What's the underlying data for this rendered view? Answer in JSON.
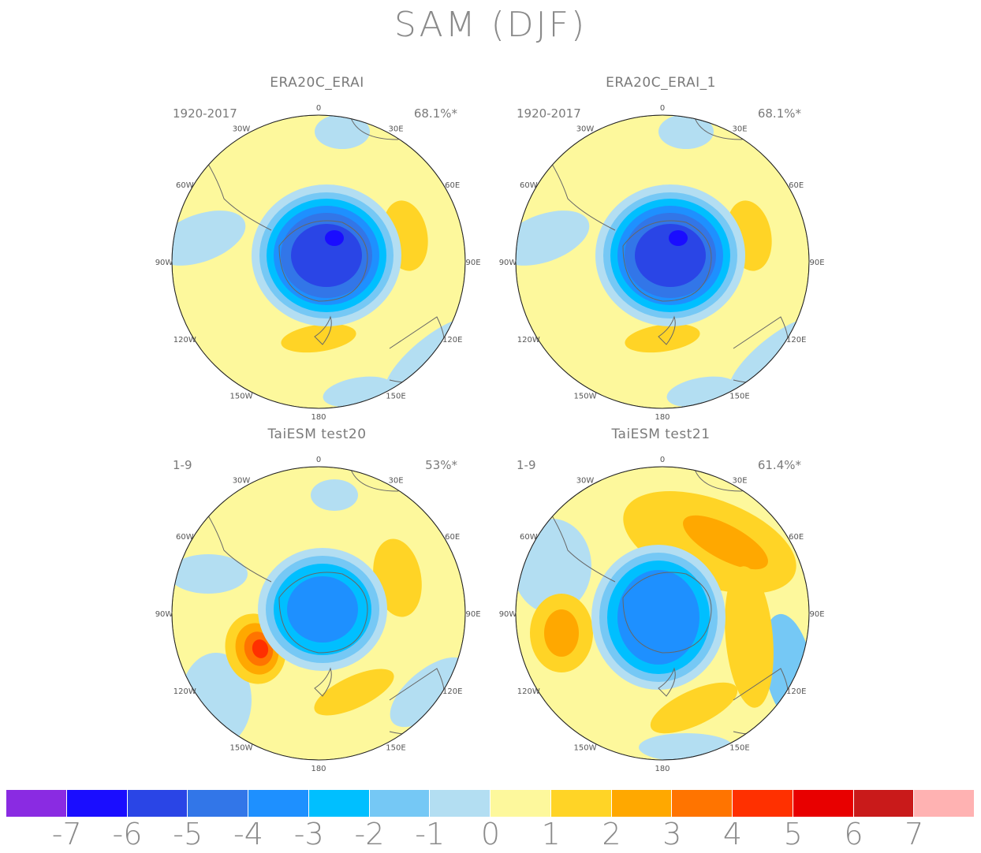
{
  "title": "SAM (DJF)",
  "panels": [
    {
      "title": "ERA20C_ERAI",
      "period": "1920-2017",
      "variance": "68.1%*",
      "pattern": "reanalysis"
    },
    {
      "title": "ERA20C_ERAI_1",
      "period": "1920-2017",
      "variance": "68.1%*",
      "pattern": "reanalysis"
    },
    {
      "title": "TaiESM test20",
      "period": "1-9",
      "variance": "53%*",
      "pattern": "test20"
    },
    {
      "title": "TaiESM test21",
      "period": "1-9",
      "variance": "61.4%*",
      "pattern": "test21"
    }
  ],
  "longitude_labels": [
    "0",
    "30E",
    "60E",
    "90E",
    "120E",
    "150E",
    "180",
    "150W",
    "120W",
    "90W",
    "60W",
    "30W"
  ],
  "colorbar": {
    "colors": [
      "#8a2be2",
      "#1a0dff",
      "#2a45e6",
      "#3276e8",
      "#1e90ff",
      "#00bfff",
      "#75c8f5",
      "#b3def2",
      "#fdf89c",
      "#ffd426",
      "#ffa800",
      "#ff7400",
      "#ff3000",
      "#e80000",
      "#c91a1a",
      "#ffb2b2"
    ],
    "tick_labels": [
      "-7",
      "-6",
      "-5",
      "-4",
      "-3",
      "-2",
      "-1",
      "0",
      "1",
      "2",
      "3",
      "4",
      "5",
      "6",
      "7"
    ]
  }
}
